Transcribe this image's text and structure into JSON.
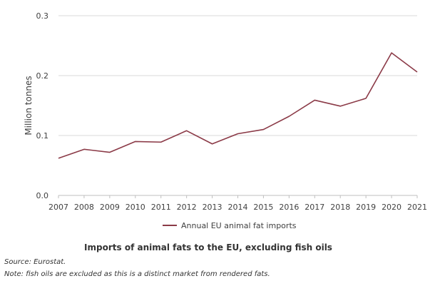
{
  "chart_data": {
    "type": "line",
    "title": "Imports of animal fats to the EU, excluding fish oils",
    "xlabel": "",
    "ylabel": "Million tonnes",
    "ylim": [
      0,
      0.3
    ],
    "yticks": [
      "0.0",
      "0.1",
      "0.2",
      "0.3"
    ],
    "grid": true,
    "legend_position": "bottom",
    "x": [
      "2007",
      "2008",
      "2009",
      "2010",
      "2011",
      "2012",
      "2013",
      "2014",
      "2015",
      "2016",
      "2017",
      "2018",
      "2019",
      "2020",
      "2021"
    ],
    "series": [
      {
        "name": "Annual EU animal fat imports",
        "color": "#8B3A47",
        "values": [
          0.062,
          0.077,
          0.072,
          0.09,
          0.089,
          0.108,
          0.086,
          0.103,
          0.11,
          0.132,
          0.159,
          0.149,
          0.162,
          0.238,
          0.206
        ]
      }
    ]
  },
  "notes": {
    "source": "Source: Eurostat.",
    "note": "Note: fish oils are excluded as this is a distinct market from rendered fats."
  }
}
